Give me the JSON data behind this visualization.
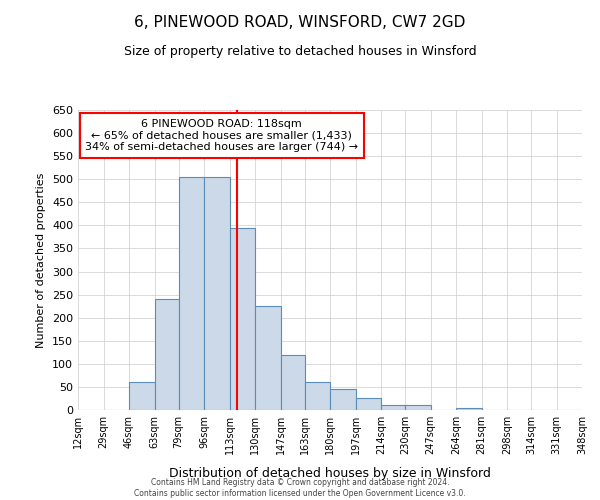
{
  "title": "6, PINEWOOD ROAD, WINSFORD, CW7 2GD",
  "subtitle": "Size of property relative to detached houses in Winsford",
  "xlabel": "Distribution of detached houses by size in Winsford",
  "ylabel": "Number of detached properties",
  "bin_edges": [
    12,
    29,
    46,
    63,
    79,
    96,
    113,
    130,
    147,
    163,
    180,
    197,
    214,
    230,
    247,
    264,
    281,
    298,
    314,
    331,
    348
  ],
  "bar_heights": [
    0,
    0,
    60,
    240,
    505,
    505,
    395,
    225,
    120,
    60,
    45,
    25,
    10,
    10,
    0,
    5,
    0,
    0,
    0,
    0
  ],
  "bar_facecolor": "#ccd9e8",
  "bar_edgecolor": "#5b8db8",
  "vline_x": 118,
  "vline_color": "red",
  "ylim": [
    0,
    650
  ],
  "yticks": [
    0,
    50,
    100,
    150,
    200,
    250,
    300,
    350,
    400,
    450,
    500,
    550,
    600,
    650
  ],
  "annotation_title": "6 PINEWOOD ROAD: 118sqm",
  "annotation_line1": "← 65% of detached houses are smaller (1,433)",
  "annotation_line2": "34% of semi-detached houses are larger (744) →",
  "annotation_box_color": "#ffffff",
  "annotation_border_color": "red",
  "footer_line1": "Contains HM Land Registry data © Crown copyright and database right 2024.",
  "footer_line2": "Contains public sector information licensed under the Open Government Licence v3.0.",
  "background_color": "#ffffff",
  "grid_color": "#cccccc"
}
